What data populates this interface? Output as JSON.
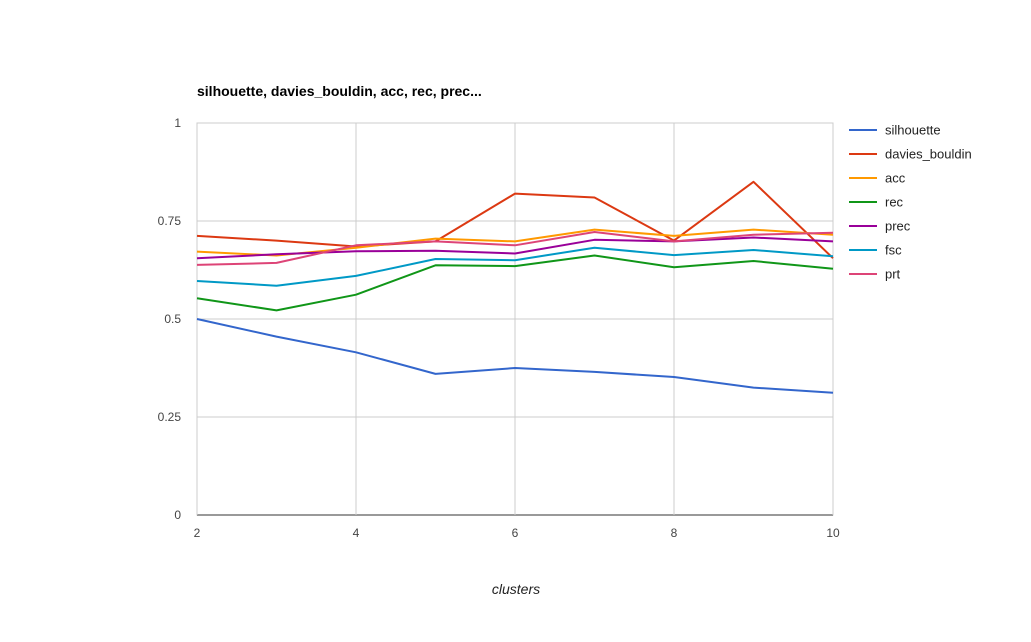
{
  "chart_data": {
    "type": "line",
    "title": "silhouette, davies_bouldin, acc, rec, prec...",
    "xlabel": "clusters",
    "ylabel": "",
    "x": [
      2,
      3,
      4,
      5,
      6,
      7,
      8,
      9,
      10
    ],
    "xlim": [
      2,
      10
    ],
    "ylim": [
      0,
      1
    ],
    "x_ticks": [
      "2",
      "4",
      "6",
      "8",
      "10"
    ],
    "y_ticks": [
      "0",
      "0.25",
      "0.5",
      "0.75",
      "1"
    ],
    "grid": true,
    "legend_position": "right",
    "series": [
      {
        "name": "silhouette",
        "color": "#3366cc",
        "values": [
          0.5,
          0.455,
          0.415,
          0.36,
          0.375,
          0.365,
          0.352,
          0.325,
          0.312
        ]
      },
      {
        "name": "davies_bouldin",
        "color": "#dc3912",
        "values": [
          0.712,
          0.7,
          0.685,
          0.698,
          0.82,
          0.81,
          0.7,
          0.85,
          0.655
        ]
      },
      {
        "name": "acc",
        "color": "#ff9900",
        "values": [
          0.672,
          0.662,
          0.682,
          0.705,
          0.698,
          0.728,
          0.712,
          0.728,
          0.715
        ]
      },
      {
        "name": "rec",
        "color": "#109618",
        "values": [
          0.553,
          0.522,
          0.562,
          0.637,
          0.635,
          0.662,
          0.632,
          0.648,
          0.628
        ]
      },
      {
        "name": "prec",
        "color": "#990099",
        "values": [
          0.655,
          0.665,
          0.673,
          0.674,
          0.667,
          0.702,
          0.698,
          0.708,
          0.698
        ]
      },
      {
        "name": "fsc",
        "color": "#0099c6",
        "values": [
          0.597,
          0.585,
          0.61,
          0.653,
          0.65,
          0.682,
          0.663,
          0.676,
          0.66
        ]
      },
      {
        "name": "prt",
        "color": "#dd4477",
        "values": [
          0.638,
          0.643,
          0.688,
          0.698,
          0.688,
          0.722,
          0.698,
          0.715,
          0.72
        ]
      }
    ]
  }
}
